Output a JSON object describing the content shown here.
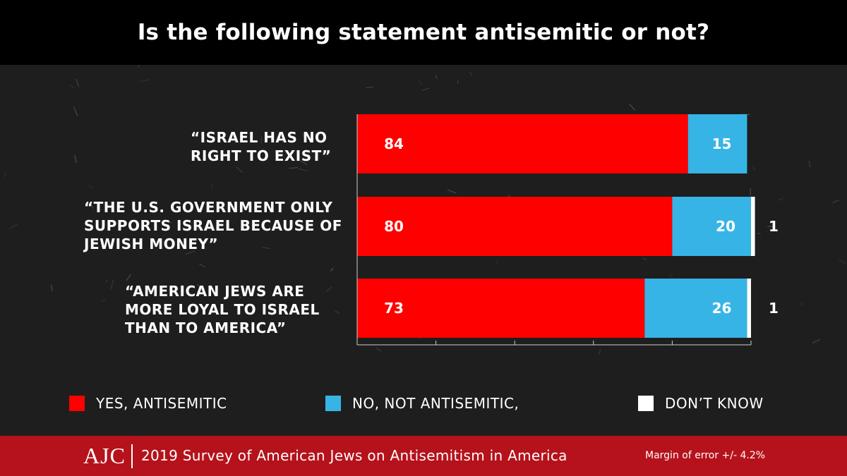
{
  "header": {
    "title": "Is the following statement antisemitic or not?"
  },
  "chart_data": {
    "type": "bar",
    "orientation": "horizontal",
    "stacked": true,
    "title": "Is the following statement antisemitic or not?",
    "categories": [
      "“Israel has no right to exist”",
      "“The U.S. Government only supports Israel because of Jewish money”",
      "“American Jews are more loyal to Israel than to America”"
    ],
    "series": [
      {
        "name": "YES, ANTISEMITIC",
        "color": "#ff0000",
        "values": [
          84,
          80,
          73
        ]
      },
      {
        "name": "NO, NOT ANTISEMITIC,",
        "color": "#37b4e6",
        "values": [
          15,
          20,
          26
        ]
      },
      {
        "name": "DON’T KNOW",
        "color": "#ffffff",
        "values": [
          0,
          1,
          1
        ]
      }
    ],
    "data_labels": [
      [
        "84",
        "15",
        ""
      ],
      [
        "80",
        "20",
        "1"
      ],
      [
        "73",
        "26",
        "1"
      ]
    ],
    "xlim": [
      0,
      100
    ],
    "grid": false,
    "legend_position": "bottom"
  },
  "legend": {
    "items": [
      {
        "label": "YES, ANTISEMITIC",
        "color": "#ff0000"
      },
      {
        "label": "NO, NOT ANTISEMITIC,",
        "color": "#37b4e6"
      },
      {
        "label": "DON’T KNOW",
        "color": "#ffffff"
      }
    ]
  },
  "footer": {
    "logo": "AJC",
    "survey": "2019 Survey of American Jews on Antisemitism in America",
    "margin_of_error": "Margin of error +/- 4.2%",
    "background": "#b5121b"
  }
}
